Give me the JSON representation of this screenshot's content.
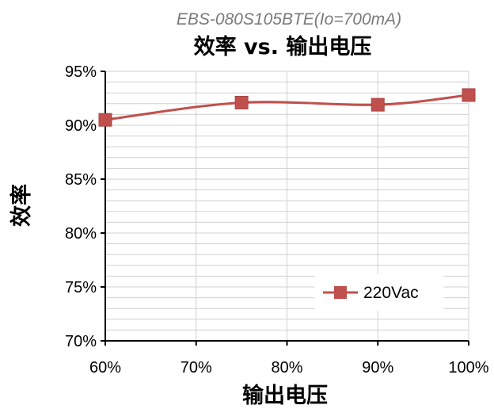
{
  "chart_data": {
    "type": "line",
    "subtitle": "EBS-080S105BTE(Io=700mA)",
    "title": "效率 vs. 输出电压",
    "xlabel": "输出电压",
    "ylabel": "效率",
    "x": [
      0.6,
      0.75,
      0.9,
      1.0
    ],
    "xlim": [
      0.6,
      1.0
    ],
    "ylim": [
      0.7,
      0.95
    ],
    "xticks": [
      0.6,
      0.7,
      0.8,
      0.9,
      1.0
    ],
    "xtick_labels": [
      "60%",
      "70%",
      "80%",
      "90%",
      "100%"
    ],
    "yticks": [
      0.7,
      0.75,
      0.8,
      0.85,
      0.9,
      0.95
    ],
    "ytick_labels": [
      "70%",
      "75%",
      "80%",
      "85%",
      "90%",
      "95%"
    ],
    "grid": true,
    "legend_position": "lower-right",
    "series": [
      {
        "name": "220Vac",
        "values": [
          0.905,
          0.921,
          0.919,
          0.928
        ],
        "color": "#c0504d",
        "marker": "square"
      }
    ]
  }
}
